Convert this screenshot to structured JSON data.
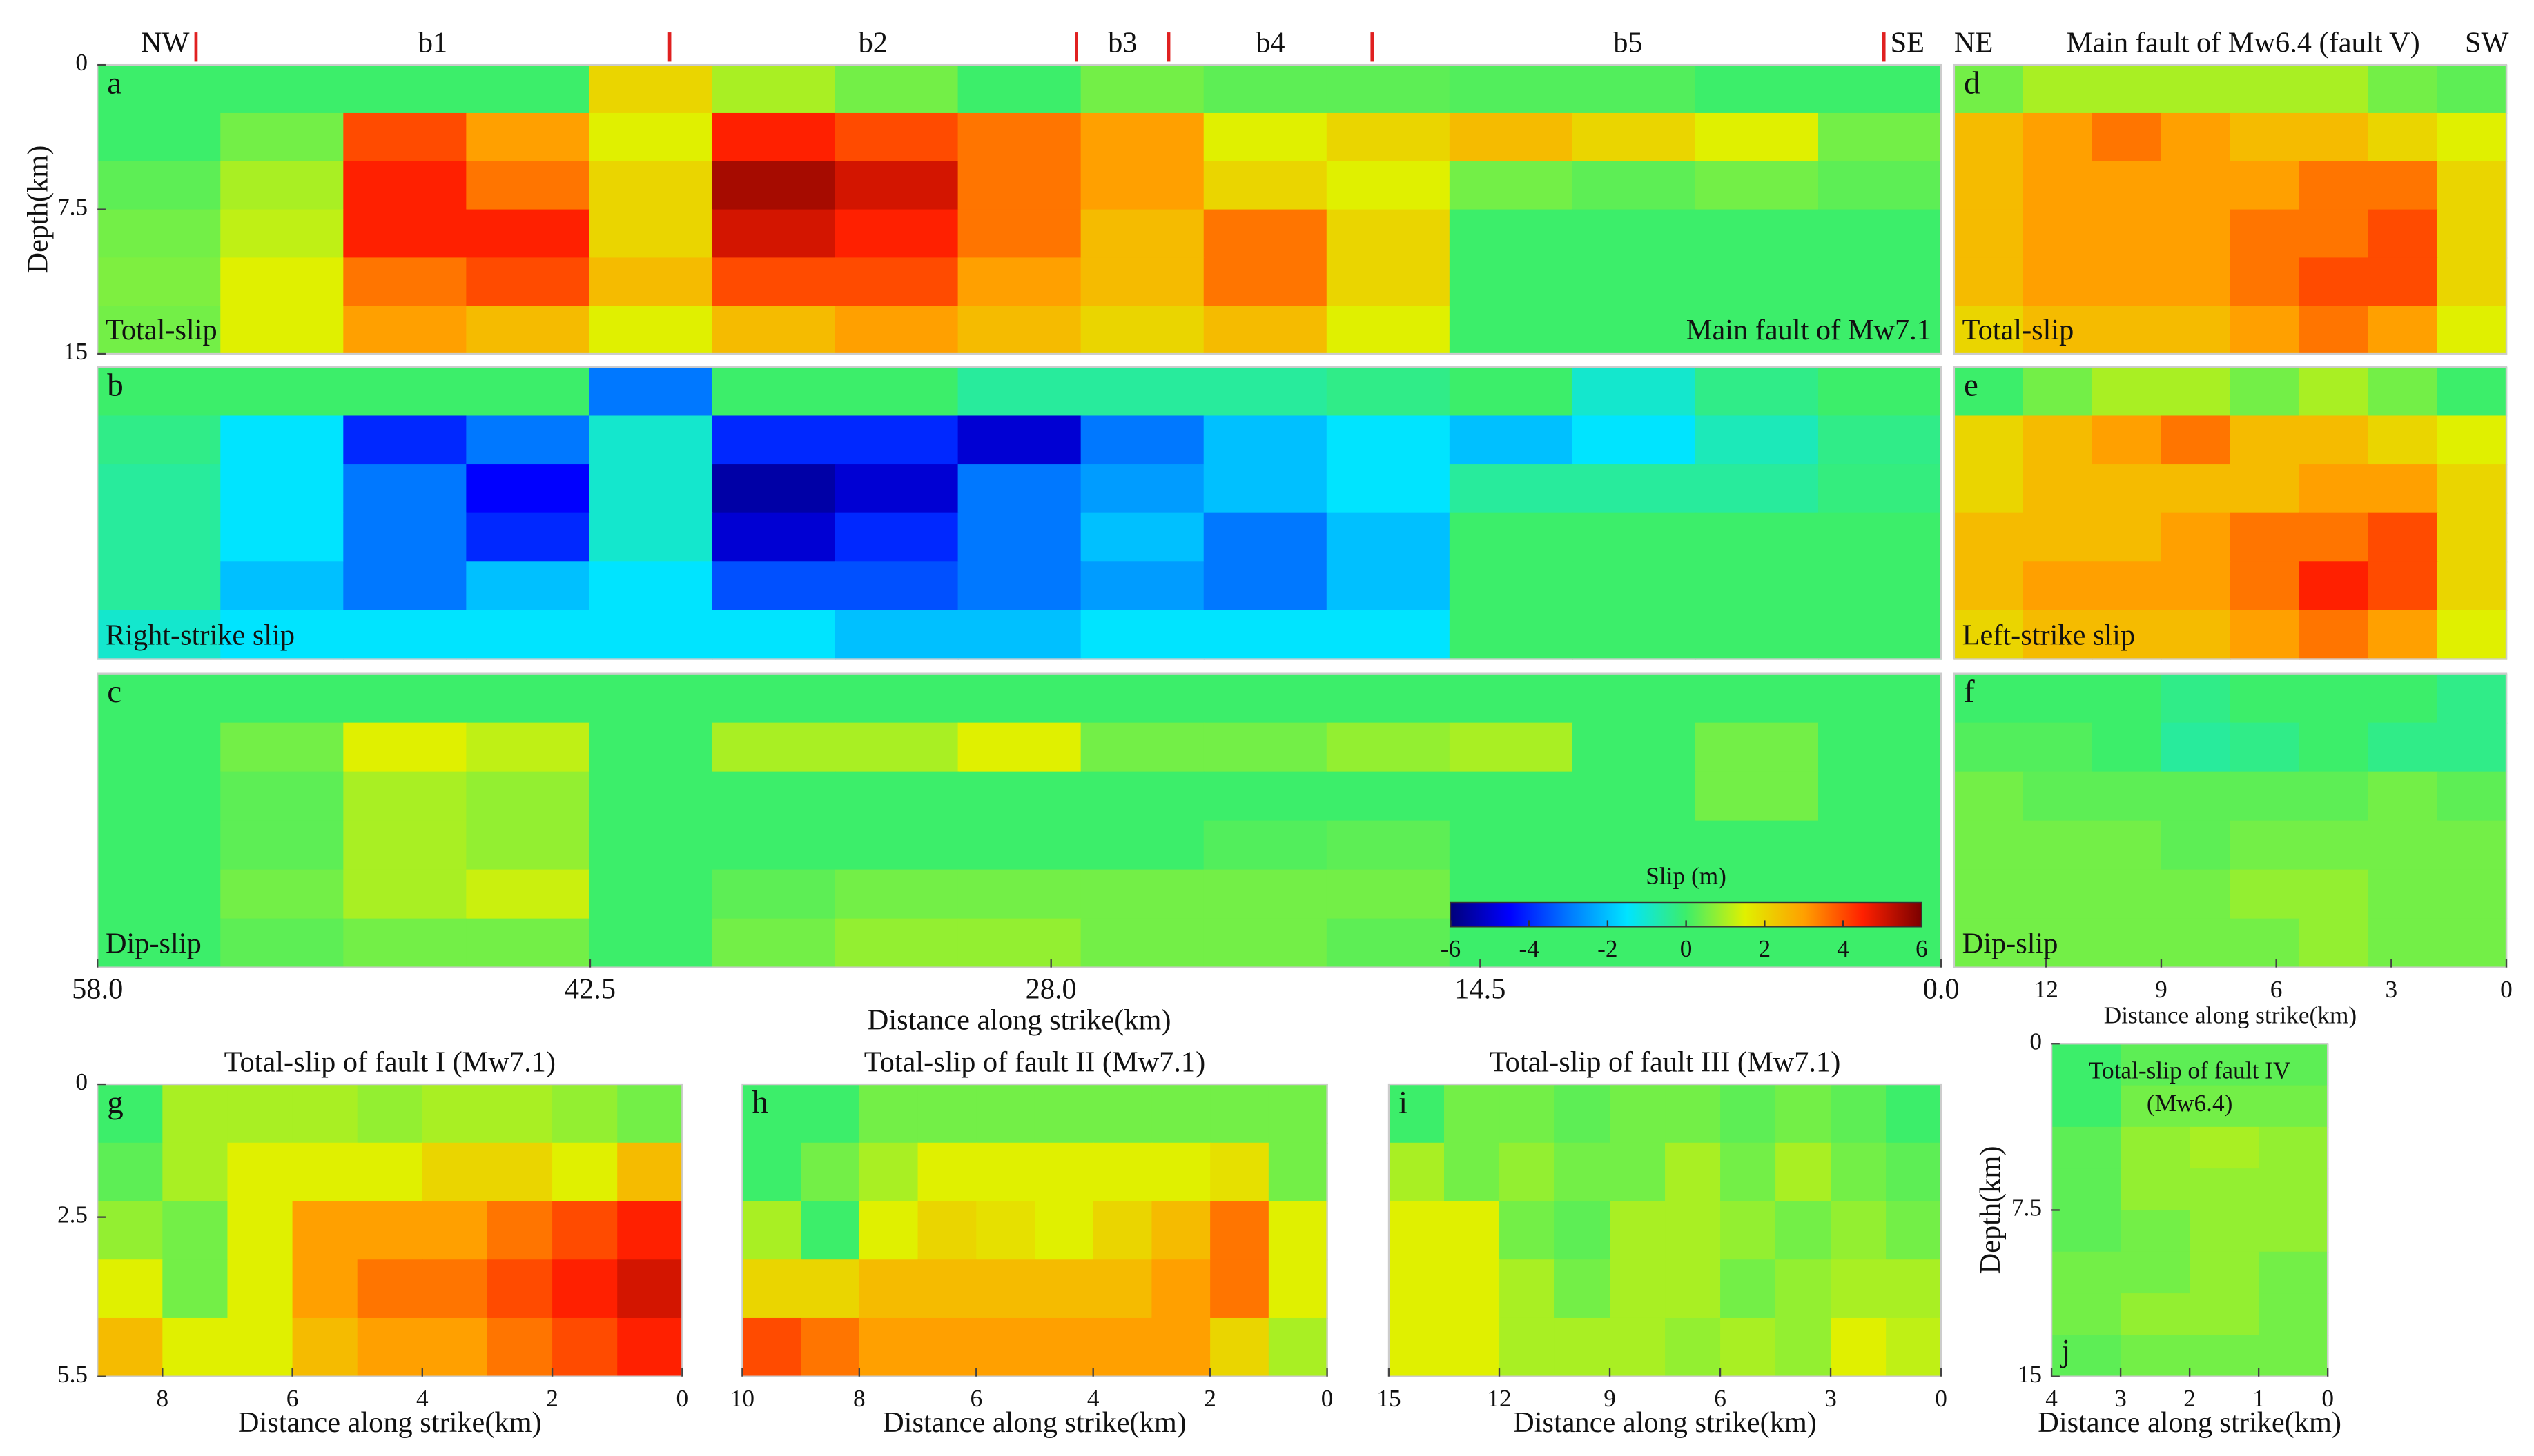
{
  "chart_data": [
    {
      "type": "heatmap",
      "panel": "a",
      "text": "Total-slip",
      "note": "Main fault of Mw7.1",
      "ylabel": "Depth(km)",
      "xlim": [
        58,
        0
      ],
      "ylim": [
        0,
        15
      ],
      "yticks": [
        0,
        7.5,
        15
      ],
      "segment_labels": [
        "NW",
        "b1",
        "b2",
        "b3",
        "b4",
        "b5",
        "SE"
      ],
      "boundaries": [
        54.9,
        40,
        27.2,
        24.3,
        17.9,
        1.8
      ],
      "values": [
        [
          0,
          0,
          0,
          0,
          2,
          1,
          0.5,
          0,
          0.5,
          0.3,
          0.3,
          0.2,
          0.2,
          0,
          0
        ],
        [
          0,
          0.5,
          4,
          3,
          1.5,
          4.5,
          4,
          3.5,
          3,
          1.5,
          2,
          2.5,
          2,
          1.5,
          0.5
        ],
        [
          0.3,
          1,
          4.5,
          3.5,
          2,
          5.5,
          5,
          3.5,
          3,
          2,
          1.5,
          0.5,
          0.3,
          0.5,
          0.3
        ],
        [
          0.5,
          1.2,
          4.5,
          4.5,
          2,
          5,
          4.5,
          3.5,
          2.5,
          3.5,
          2,
          0,
          0,
          0,
          0
        ],
        [
          0.6,
          1.5,
          3.5,
          4,
          2.5,
          4,
          4,
          3,
          2.5,
          3.5,
          2,
          0,
          0,
          0,
          0
        ],
        [
          0.5,
          1.5,
          3,
          2.5,
          1.5,
          2.5,
          3,
          2.5,
          2,
          2.5,
          1.5,
          0,
          0,
          0,
          0
        ]
      ]
    },
    {
      "type": "heatmap",
      "panel": "b",
      "text": "Right-strike slip",
      "xlim": [
        58,
        0
      ],
      "ylim": [
        0,
        15
      ],
      "values": [
        [
          0,
          0,
          0,
          0,
          -3,
          0,
          0,
          -0.5,
          -0.5,
          -0.5,
          -0.3,
          0,
          -1,
          -0.3,
          0
        ],
        [
          -0.3,
          -1.5,
          -4,
          -3,
          -1,
          -4,
          -4,
          -5,
          -3,
          -2,
          -1.5,
          -2,
          -1.5,
          -0.8,
          -0.3
        ],
        [
          -0.5,
          -1.5,
          -3,
          -4.5,
          -1,
          -5.5,
          -5,
          -3,
          -2.5,
          -2,
          -1.5,
          -0.5,
          -0.5,
          -0.5,
          -0.2
        ],
        [
          -0.5,
          -1.5,
          -3,
          -4,
          -1,
          -5,
          -4,
          -3,
          -2,
          -3,
          -2,
          0,
          0,
          0,
          0
        ],
        [
          -0.5,
          -2,
          -3,
          -2,
          -1.5,
          -3.5,
          -3.5,
          -3,
          -2.5,
          -3,
          -2,
          0,
          0,
          0,
          0
        ],
        [
          -1,
          -1.5,
          -1.5,
          -1.5,
          -1.5,
          -1.5,
          -2,
          -2,
          -1.5,
          -1.5,
          -1.5,
          0,
          0,
          0,
          0
        ]
      ]
    },
    {
      "type": "heatmap",
      "panel": "c",
      "text": "Dip-slip",
      "xlabel": "Distance along strike(km)",
      "xlim": [
        58,
        0
      ],
      "ylim": [
        0,
        15
      ],
      "xticks": [
        {
          "value": 58,
          "label": "58.0"
        },
        42.5,
        {
          "value": 28,
          "label": "28.0"
        },
        14.5,
        {
          "value": 0,
          "label": "0.0"
        }
      ],
      "colorbar": {
        "title": "Slip  (m)",
        "clim": [
          -6,
          6
        ],
        "ticks": [
          -6,
          -4,
          -2,
          0,
          2,
          4,
          6
        ],
        "colors": [
          "#00007a",
          "#0000ff",
          "#0078ff",
          "#00e4ff",
          "#3cee6a",
          "#e0f000",
          "#ffa000",
          "#ff2000",
          "#7a0000"
        ]
      },
      "values": [
        [
          0,
          0,
          0,
          0,
          0,
          0,
          0,
          0,
          0,
          0,
          0,
          0,
          0,
          0,
          0
        ],
        [
          0,
          0.5,
          1.5,
          1.2,
          0,
          1,
          1,
          1.5,
          0.5,
          0.5,
          0.8,
          1,
          0,
          0.5,
          0
        ],
        [
          0,
          0.3,
          1,
          0.8,
          0,
          0,
          0,
          0,
          0,
          0,
          0,
          0,
          0,
          0.5,
          0
        ],
        [
          0,
          0.3,
          1,
          0.8,
          0,
          0,
          0,
          0,
          0,
          0.2,
          0.3,
          0,
          0,
          0,
          0
        ],
        [
          0,
          0.5,
          1,
          1.3,
          0,
          0.3,
          0.5,
          0.5,
          0.5,
          0.5,
          0.5,
          0,
          0,
          0,
          0
        ],
        [
          0,
          0.3,
          0.5,
          0.5,
          0,
          0.5,
          0.8,
          0.8,
          0.5,
          0.5,
          0.3,
          0,
          0,
          0,
          0
        ]
      ]
    },
    {
      "type": "heatmap",
      "panel": "d",
      "title": "Main fault of Mw6.4 (fault V)",
      "left_label": "NE",
      "right_label": "SW",
      "text": "Total-slip",
      "xlim": [
        14.4,
        0
      ],
      "ylim": [
        0,
        15
      ],
      "values": [
        [
          0.5,
          1,
          1,
          1,
          1,
          1,
          0.5,
          0.3
        ],
        [
          2.5,
          3,
          3.5,
          3,
          2.5,
          2.5,
          2,
          1.5
        ],
        [
          2.5,
          3,
          3,
          3,
          3,
          3.5,
          3.5,
          2
        ],
        [
          2.5,
          3,
          3,
          3,
          3.5,
          3.5,
          4,
          2
        ],
        [
          2.5,
          3,
          3,
          3,
          3.5,
          4,
          4,
          2
        ],
        [
          2,
          2.5,
          2.5,
          2.5,
          3,
          3.5,
          3,
          1.5
        ]
      ]
    },
    {
      "type": "heatmap",
      "panel": "e",
      "text": "Left-strike slip",
      "xlim": [
        14.4,
        0
      ],
      "ylim": [
        0,
        15
      ],
      "values": [
        [
          0,
          0.5,
          1,
          1,
          0.5,
          1,
          0.5,
          0
        ],
        [
          2,
          2.5,
          3,
          3.5,
          2.5,
          2.5,
          2,
          1.5
        ],
        [
          2,
          2.5,
          2.5,
          2.5,
          2.5,
          3,
          3,
          2
        ],
        [
          2.5,
          2.5,
          2.5,
          3,
          3.5,
          3.5,
          4,
          2
        ],
        [
          2.5,
          3,
          3,
          3,
          3.5,
          4.5,
          4,
          2
        ],
        [
          2,
          2.5,
          2.5,
          2.5,
          3,
          3.5,
          3,
          1.5
        ]
      ]
    },
    {
      "type": "heatmap",
      "panel": "f",
      "text": "Dip-slip",
      "xlabel": "Distance along strike(km)",
      "xlim": [
        14.4,
        0
      ],
      "ylim": [
        0,
        15
      ],
      "xticks": [
        12,
        9,
        6,
        3,
        0
      ],
      "values": [
        [
          0,
          0,
          0,
          -0.3,
          0,
          0,
          0,
          -0.3
        ],
        [
          0.2,
          0.2,
          0,
          -0.5,
          -0.3,
          0,
          -0.3,
          -0.3
        ],
        [
          0.5,
          0.3,
          0.3,
          0.3,
          0.3,
          0.3,
          0.5,
          0.3
        ],
        [
          0.5,
          0.5,
          0.5,
          0.3,
          0.5,
          0.5,
          0.5,
          0.5
        ],
        [
          0.5,
          0.5,
          0.5,
          0.5,
          0.8,
          0.8,
          0.5,
          0.5
        ],
        [
          0.5,
          0.5,
          0.5,
          0.5,
          0.5,
          0.8,
          0.5,
          0.5
        ]
      ]
    },
    {
      "type": "heatmap",
      "panel": "g",
      "title": "Total-slip of  fault I (Mw7.1)",
      "xlabel": "Distance along strike(km)",
      "xlim": [
        9,
        0
      ],
      "ylim": [
        0,
        5.5
      ],
      "xticks": [
        8,
        6,
        4,
        2,
        0
      ],
      "yticks": [
        0,
        2.5,
        5.5
      ],
      "values": [
        [
          0,
          1,
          1,
          1,
          0.8,
          1,
          1,
          0.8,
          0.5
        ],
        [
          0.3,
          1,
          1.5,
          1.5,
          1.5,
          2,
          2,
          1.5,
          2.5
        ],
        [
          0.8,
          0.5,
          1.5,
          3,
          3,
          3,
          3.5,
          4,
          4.5
        ],
        [
          1.5,
          0.5,
          1.5,
          3,
          3.5,
          3.5,
          4,
          4.5,
          5
        ],
        [
          2.5,
          1.5,
          1.5,
          2.5,
          3,
          3,
          3.5,
          4,
          4.5
        ]
      ]
    },
    {
      "type": "heatmap",
      "panel": "h",
      "title": "Total-slip of fault II (Mw7.1)",
      "xlabel": "Distance along strike(km)",
      "xlim": [
        10,
        0
      ],
      "ylim": [
        0,
        5.5
      ],
      "xticks": [
        10,
        8,
        6,
        4,
        2,
        0
      ],
      "values": [
        [
          0,
          0,
          0.5,
          0.5,
          0.5,
          0.5,
          0.5,
          0.5,
          0.5,
          0.5
        ],
        [
          0,
          0.5,
          1,
          1.5,
          1.5,
          1.5,
          1.5,
          1.5,
          1.8,
          0.5
        ],
        [
          1,
          0,
          1.5,
          2,
          1.8,
          1.5,
          2,
          2.5,
          3.5,
          1.5
        ],
        [
          2,
          2,
          2.5,
          2.5,
          2.5,
          2.5,
          2.5,
          3,
          3.5,
          1.5
        ],
        [
          4,
          3.5,
          3,
          3,
          3,
          3,
          3,
          3,
          2,
          1
        ]
      ]
    },
    {
      "type": "heatmap",
      "panel": "i",
      "title": "Total-slip of  fault III (Mw7.1)",
      "xlabel": "Distance along strike(km)",
      "xlim": [
        15,
        0
      ],
      "ylim": [
        0,
        5.5
      ],
      "xticks": [
        15,
        12,
        9,
        6,
        3,
        0
      ],
      "values": [
        [
          0,
          0.5,
          0.5,
          0.3,
          0.5,
          0.5,
          0.3,
          0.5,
          0.3,
          0
        ],
        [
          1,
          0.5,
          0.8,
          0.5,
          0.5,
          1,
          0.5,
          1,
          0.5,
          0.3
        ],
        [
          1.5,
          1.5,
          0.5,
          0.3,
          1,
          1,
          0.8,
          0.5,
          0.8,
          0.5
        ],
        [
          1.5,
          1.5,
          1,
          0.5,
          1,
          1,
          0.5,
          0.8,
          1,
          1
        ],
        [
          1.5,
          1.5,
          1,
          1,
          1,
          0.8,
          1,
          0.8,
          1.5,
          1.2
        ]
      ]
    },
    {
      "type": "heatmap",
      "panel": "j",
      "title_lines": [
        "Total-slip of  fault IV",
        "(Mw6.4)"
      ],
      "ylabel": "Depth(km)",
      "xlabel": "Distance along strike(km)",
      "xlim": [
        4,
        0
      ],
      "ylim": [
        0,
        15
      ],
      "xticks": [
        4,
        3,
        2,
        1,
        0
      ],
      "yticks": [
        0,
        7.5,
        15
      ],
      "values": [
        [
          0,
          0.3,
          0.3,
          0.3
        ],
        [
          0,
          0.5,
          0.5,
          0.5
        ],
        [
          0.3,
          0.8,
          1,
          0.8
        ],
        [
          0.3,
          0.8,
          0.8,
          0.8
        ],
        [
          0.3,
          0.5,
          0.8,
          0.8
        ],
        [
          0.5,
          0.5,
          0.8,
          0.5
        ],
        [
          0.5,
          0.8,
          0.8,
          0.5
        ],
        [
          0.3,
          0.5,
          0.5,
          0.5
        ]
      ]
    }
  ]
}
